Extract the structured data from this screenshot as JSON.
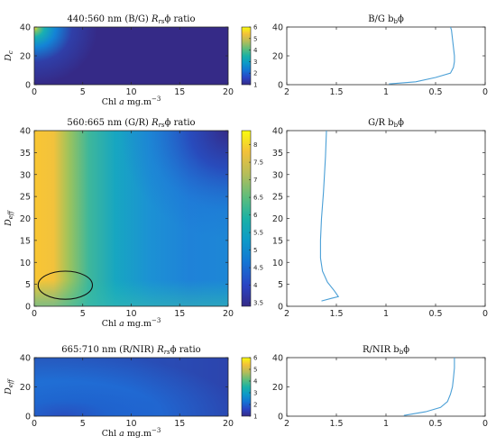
{
  "chart_data": [
    {
      "id": "hm1",
      "type": "heatmap",
      "title": "440:560 nm (B/G) Rₑₓϕ ratio",
      "title_plain": "440:560 nm (B/G)",
      "title_tail": "ratio",
      "xlabel": "Chl a mg.m⁻³",
      "ylabel": "Dₑ",
      "ylabel_main": "D",
      "ylabel_sub": "c",
      "xlim": [
        0,
        20
      ],
      "ylim": [
        0,
        40
      ],
      "xticks": [
        "0",
        "5",
        "10",
        "15",
        "20"
      ],
      "yticks": [
        "0",
        "20",
        "40"
      ],
      "colorbar": {
        "min": 1,
        "max": 6,
        "ticks": [
          "1",
          "2",
          "3",
          "4",
          "5",
          "6"
        ]
      },
      "description_values": {
        "max_at_low_chl_high_d": 6,
        "min_elsewhere": 1
      }
    },
    {
      "id": "hm2",
      "type": "heatmap",
      "title": "560:665 nm (G/R) Rₑₓϕ ratio",
      "title_plain": "560:665 nm (G/R)",
      "title_tail": "ratio",
      "xlabel": "Chl a mg.m⁻³",
      "ylabel": "Dₑₒₒ",
      "ylabel_main": "D",
      "ylabel_sub": "eff",
      "xlim": [
        0,
        20
      ],
      "ylim": [
        0,
        40
      ],
      "xticks": [
        "0",
        "5",
        "10",
        "15",
        "20"
      ],
      "yticks": [
        "0",
        "5",
        "10",
        "15",
        "20",
        "25",
        "30",
        "35",
        "40"
      ],
      "colorbar": {
        "min": 3.4,
        "max": 8.4,
        "ticks": [
          "3.5",
          "4",
          "4.5",
          "5",
          "5.5",
          "6",
          "6.5",
          "7",
          "7.5",
          "8"
        ]
      },
      "annotation": {
        "shape": "ellipse",
        "center": [
          3.2,
          4.8
        ],
        "radii": [
          2.8,
          3.2
        ]
      }
    },
    {
      "id": "hm3",
      "type": "heatmap",
      "title": "665:710 nm (R/NIR) Rₑₓϕ ratio",
      "title_plain": "665:710 nm (R/NIR)",
      "title_tail": "ratio",
      "xlabel": "Chl a mg.m⁻³",
      "ylabel": "Dₑₒₒ",
      "ylabel_main": "D",
      "ylabel_sub": "eff",
      "xlim": [
        0,
        20
      ],
      "ylim": [
        0,
        40
      ],
      "xticks": [
        "0",
        "5",
        "10",
        "15",
        "20"
      ],
      "yticks": [
        "0",
        "20",
        "40"
      ],
      "colorbar": {
        "min": 1,
        "max": 6,
        "ticks": [
          "1",
          "2",
          "3",
          "4",
          "5",
          "6"
        ]
      }
    },
    {
      "id": "ln1",
      "type": "line",
      "title": "B/G bₕϕ",
      "title_main": "B/G b",
      "title_sub": "b",
      "title_tail": "ϕ",
      "xlim": [
        2,
        0
      ],
      "ylim": [
        0,
        40
      ],
      "xticks": [
        "2",
        "1.5",
        "1",
        "0.5",
        "0"
      ],
      "yticks": [
        "0",
        "20",
        "40"
      ],
      "x": [
        0.97,
        0.7,
        0.5,
        0.35,
        0.32,
        0.31,
        0.31,
        0.32,
        0.33,
        0.34,
        0.35
      ],
      "y": [
        0.5,
        2,
        5,
        8,
        12,
        16,
        20,
        26,
        32,
        38,
        40
      ],
      "color": "#4a9fd6"
    },
    {
      "id": "ln2",
      "type": "line",
      "title": "G/R bₕϕ",
      "title_main": "G/R b",
      "title_sub": "b",
      "title_tail": "ϕ",
      "xlim": [
        2,
        0
      ],
      "ylim": [
        0,
        40
      ],
      "xticks": [
        "2",
        "1.5",
        "1",
        "0.5",
        "0"
      ],
      "yticks": [
        "0",
        "5",
        "10",
        "15",
        "20",
        "25",
        "30",
        "35",
        "40"
      ],
      "x": [
        1.65,
        1.55,
        1.48,
        1.52,
        1.59,
        1.64,
        1.66,
        1.66,
        1.65,
        1.63,
        1.61,
        1.6
      ],
      "y": [
        1.2,
        1.8,
        2.2,
        3.5,
        5.5,
        8.0,
        11,
        15,
        20,
        26,
        34,
        40
      ],
      "color": "#4a9fd6"
    },
    {
      "id": "ln3",
      "type": "line",
      "title": "R/NIR bₕϕ",
      "title_main": "R/NIR b",
      "title_sub": "b",
      "title_tail": "ϕ",
      "xlim": [
        2,
        0
      ],
      "ylim": [
        0,
        40
      ],
      "xticks": [
        "2",
        "1.5",
        "1",
        "0.5",
        "0"
      ],
      "yticks": [
        "0",
        "20",
        "40"
      ],
      "x": [
        0.82,
        0.6,
        0.45,
        0.38,
        0.35,
        0.33,
        0.32,
        0.31,
        0.31
      ],
      "y": [
        0.5,
        3,
        6,
        10,
        15,
        20,
        26,
        33,
        40
      ],
      "color": "#4a9fd6"
    }
  ]
}
